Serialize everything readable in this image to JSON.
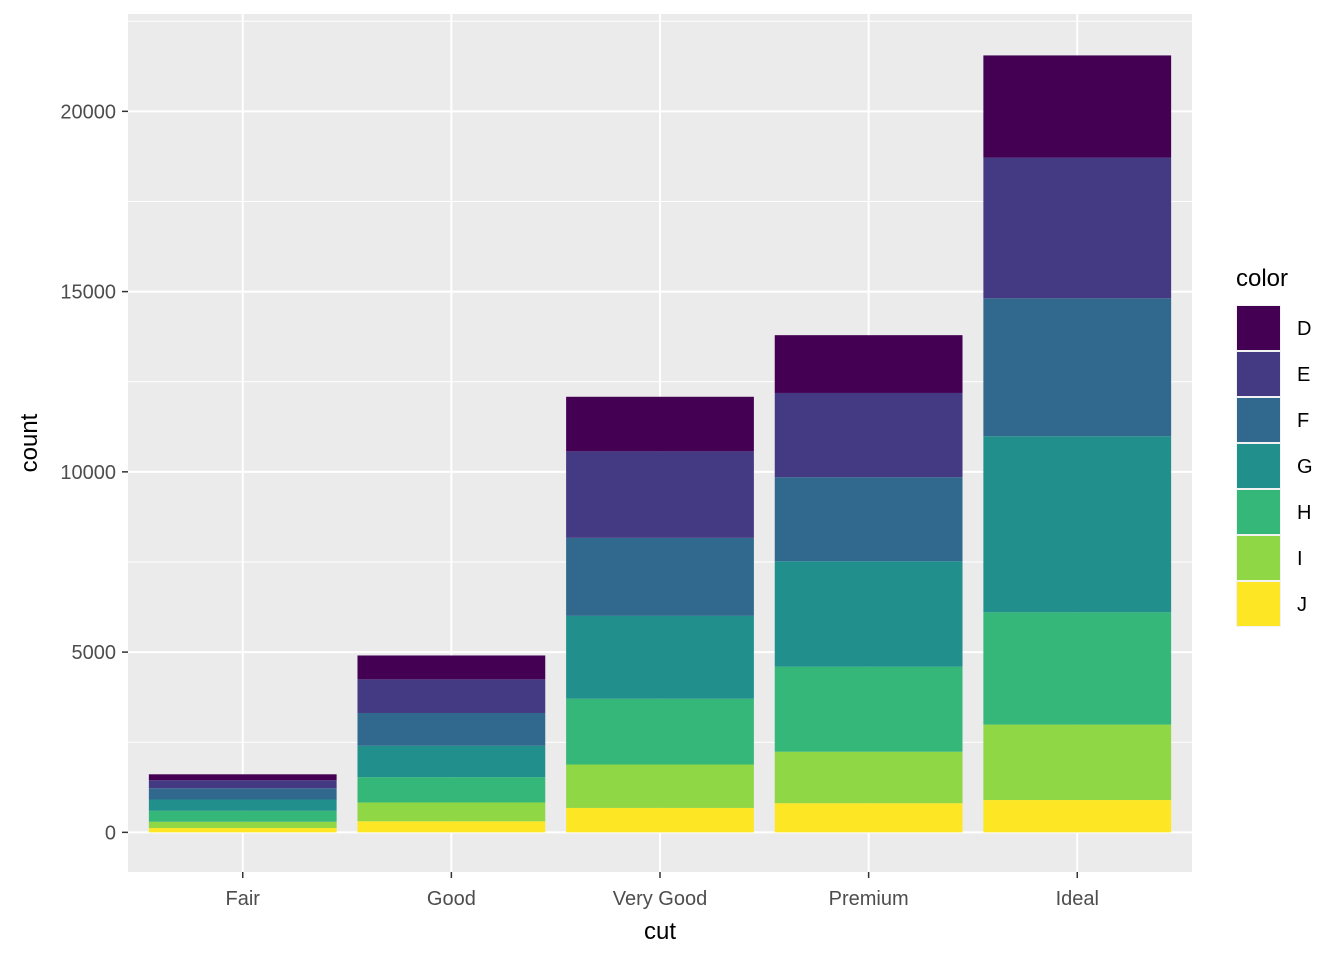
{
  "chart_data": {
    "type": "bar",
    "stacked": true,
    "title": "",
    "xlabel": "cut",
    "ylabel": "count",
    "categories": [
      "Fair",
      "Good",
      "Very Good",
      "Premium",
      "Ideal"
    ],
    "ylim": [
      -1100,
      22700
    ],
    "yticks": [
      0,
      5000,
      10000,
      15000,
      20000
    ],
    "ytick_labels": [
      "0",
      "5000",
      "10000",
      "15000",
      "20000"
    ],
    "legend": {
      "title": "color",
      "position": "right"
    },
    "grid": true,
    "background": "#ebebeb",
    "series": [
      {
        "name": "D",
        "color": "#440154",
        "values": [
          163,
          662,
          1513,
          1603,
          2834
        ]
      },
      {
        "name": "E",
        "color": "#443A83",
        "values": [
          224,
          933,
          2400,
          2337,
          3903
        ]
      },
      {
        "name": "F",
        "color": "#31688E",
        "values": [
          312,
          909,
          2164,
          2331,
          3826
        ]
      },
      {
        "name": "G",
        "color": "#21908C",
        "values": [
          314,
          871,
          2299,
          2924,
          4884
        ]
      },
      {
        "name": "H",
        "color": "#35B779",
        "values": [
          303,
          702,
          1824,
          2360,
          3115
        ]
      },
      {
        "name": "I",
        "color": "#8FD744",
        "values": [
          175,
          522,
          1204,
          1428,
          2093
        ]
      },
      {
        "name": "J",
        "color": "#FDE725",
        "values": [
          119,
          307,
          678,
          808,
          896
        ]
      }
    ]
  }
}
